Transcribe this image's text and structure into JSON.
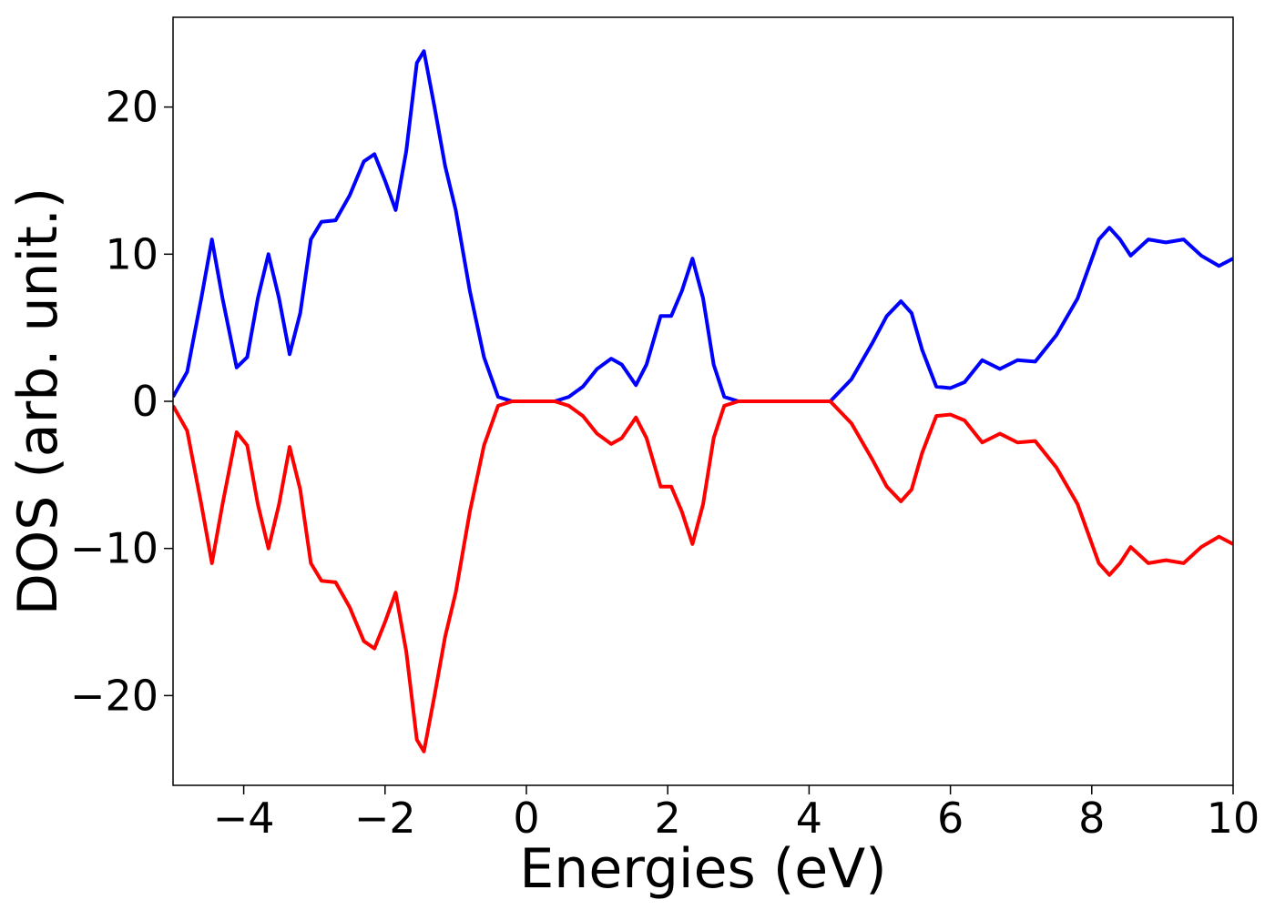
{
  "chart_data": {
    "type": "line",
    "xlabel": "Energies (eV)",
    "ylabel": "DOS (arb. unit.)",
    "x": [
      -5,
      -4.8,
      -4.6,
      -4.45,
      -4.3,
      -4.1,
      -3.95,
      -3.8,
      -3.65,
      -3.5,
      -3.35,
      -3.2,
      -3.05,
      -2.9,
      -2.7,
      -2.5,
      -2.3,
      -2.15,
      -2.0,
      -1.85,
      -1.7,
      -1.55,
      -1.45,
      -1.3,
      -1.15,
      -1.0,
      -0.8,
      -0.6,
      -0.4,
      -0.2,
      0.4,
      0.6,
      0.8,
      1.0,
      1.2,
      1.35,
      1.55,
      1.7,
      1.9,
      2.05,
      2.2,
      2.35,
      2.5,
      2.65,
      2.8,
      3.0,
      4.3,
      4.6,
      4.9,
      5.1,
      5.3,
      5.45,
      5.6,
      5.8,
      6.0,
      6.2,
      6.45,
      6.7,
      6.95,
      7.2,
      7.5,
      7.8,
      8.1,
      8.25,
      8.4,
      8.55,
      8.8,
      9.05,
      9.3,
      9.55,
      9.8,
      10.0
    ],
    "series": [
      {
        "color": "#0000ff",
        "values": [
          0.3,
          2,
          7,
          11,
          7,
          2.3,
          3,
          7,
          10,
          7,
          3.2,
          6,
          11,
          12.2,
          12.3,
          14,
          16.3,
          16.8,
          15,
          13,
          17,
          23,
          23.8,
          20,
          16,
          13,
          7.5,
          3,
          0.3,
          0,
          0,
          0.3,
          1,
          2.2,
          2.9,
          2.5,
          1.1,
          2.5,
          5.8,
          5.8,
          7.5,
          9.7,
          7,
          2.5,
          0.3,
          0,
          0,
          1.5,
          4,
          5.8,
          6.8,
          6,
          3.5,
          1,
          0.9,
          1.3,
          2.8,
          2.2,
          2.8,
          2.7,
          4.5,
          7,
          11,
          11.8,
          11,
          9.9,
          11,
          10.8,
          11,
          9.9,
          9.2,
          9.7
        ]
      },
      {
        "color": "#ff0000",
        "values": [
          -0.3,
          -2,
          -7,
          -11,
          -7,
          -2.1,
          -3,
          -7,
          -10,
          -7,
          -3.1,
          -6,
          -11,
          -12.2,
          -12.3,
          -14,
          -16.3,
          -16.8,
          -15,
          -13,
          -17,
          -23,
          -23.8,
          -20,
          -16,
          -13,
          -7.5,
          -3,
          -0.3,
          0,
          0,
          -0.3,
          -1,
          -2.2,
          -2.9,
          -2.5,
          -1.1,
          -2.5,
          -5.8,
          -5.8,
          -7.5,
          -9.7,
          -7,
          -2.5,
          -0.3,
          0,
          0,
          -1.5,
          -4,
          -5.8,
          -6.8,
          -6,
          -3.5,
          -1,
          -0.9,
          -1.3,
          -2.8,
          -2.2,
          -2.8,
          -2.7,
          -4.5,
          -7,
          -11,
          -11.8,
          -11,
          -9.9,
          -11,
          -10.8,
          -11,
          -9.9,
          -9.2,
          -9.7
        ]
      }
    ],
    "xlim": [
      -5,
      10
    ],
    "ylim": [
      -26.1,
      26.1
    ],
    "xticks": [
      {
        "value": -4,
        "label": "−4"
      },
      {
        "value": -2,
        "label": "−2"
      },
      0,
      2,
      4,
      6,
      8,
      10
    ],
    "yticks": [
      {
        "value": -20,
        "label": "−20"
      },
      {
        "value": -10,
        "label": "−10"
      },
      0,
      10,
      20
    ]
  }
}
